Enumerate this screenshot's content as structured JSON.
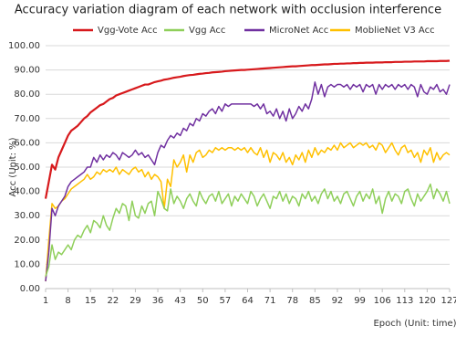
{
  "chart_data": {
    "type": "line",
    "title": "Accuracy variation diagram of each network with occlusion interference",
    "x_label": "Epoch  (Unit: time)",
    "y_label": "Acc  (Unit: %)",
    "x": [
      1,
      2,
      3,
      4,
      5,
      6,
      7,
      8,
      9,
      10,
      11,
      12,
      13,
      14,
      15,
      16,
      17,
      18,
      19,
      20,
      21,
      22,
      23,
      24,
      25,
      26,
      27,
      28,
      29,
      30,
      31,
      32,
      33,
      34,
      35,
      36,
      37,
      38,
      39,
      40,
      41,
      42,
      43,
      44,
      45,
      46,
      47,
      48,
      49,
      50,
      51,
      52,
      53,
      54,
      55,
      56,
      57,
      58,
      59,
      60,
      61,
      62,
      63,
      64,
      65,
      66,
      67,
      68,
      69,
      70,
      71,
      72,
      73,
      74,
      75,
      76,
      77,
      78,
      79,
      80,
      81,
      82,
      83,
      84,
      85,
      86,
      87,
      88,
      89,
      90,
      91,
      92,
      93,
      94,
      95,
      96,
      97,
      98,
      99,
      100,
      101,
      102,
      103,
      104,
      105,
      106,
      107,
      108,
      109,
      110,
      111,
      112,
      113,
      114,
      115,
      116,
      117,
      118,
      119,
      120,
      121,
      122,
      123,
      124,
      125,
      126,
      127
    ],
    "xlim": [
      1,
      127
    ],
    "xticks": [
      1,
      8,
      15,
      22,
      29,
      36,
      43,
      50,
      57,
      64,
      71,
      78,
      85,
      92,
      99,
      106,
      113,
      120,
      127
    ],
    "ylim": [
      0,
      100
    ],
    "yticks": [
      {
        "value": 0,
        "label": "0.00"
      },
      {
        "value": 10,
        "label": "10.00"
      },
      {
        "value": 20,
        "label": "20.00"
      },
      {
        "value": 30,
        "label": "30.00"
      },
      {
        "value": 40,
        "label": "40.00"
      },
      {
        "value": 50,
        "label": "50.00"
      },
      {
        "value": 60,
        "label": "60.00"
      },
      {
        "value": 70,
        "label": "70.00"
      },
      {
        "value": 80,
        "label": "80.00"
      },
      {
        "value": 90,
        "label": "90.00"
      },
      {
        "value": 100,
        "label": "100.00"
      }
    ],
    "grid": true,
    "legend": "top",
    "series": [
      {
        "name": "Vgg-Vote Acc",
        "color": "#d7191c",
        "values": [
          37,
          44,
          51,
          49,
          54,
          57,
          60,
          63,
          65,
          66,
          67,
          68.5,
          70,
          71,
          72.5,
          73.5,
          74.5,
          75.5,
          76,
          77,
          78,
          78.5,
          79.5,
          80,
          80.5,
          81,
          81.5,
          82,
          82.5,
          83,
          83.5,
          84,
          84,
          84.5,
          85,
          85.3,
          85.6,
          86,
          86.2,
          86.5,
          86.8,
          87,
          87.2,
          87.5,
          87.7,
          87.9,
          88,
          88.2,
          88.4,
          88.5,
          88.7,
          88.8,
          89,
          89.1,
          89.2,
          89.3,
          89.5,
          89.6,
          89.7,
          89.8,
          89.9,
          90,
          90,
          90.1,
          90.2,
          90.3,
          90.4,
          90.5,
          90.6,
          90.7,
          90.8,
          90.9,
          91,
          91.1,
          91.2,
          91.3,
          91.4,
          91.5,
          91.5,
          91.6,
          91.7,
          91.8,
          91.9,
          92,
          92,
          92.1,
          92.2,
          92.3,
          92.3,
          92.4,
          92.5,
          92.5,
          92.6,
          92.6,
          92.7,
          92.7,
          92.8,
          92.8,
          92.9,
          92.9,
          93,
          93,
          93,
          93.1,
          93.1,
          93.1,
          93.2,
          93.2,
          93.2,
          93.3,
          93.3,
          93.3,
          93.4,
          93.4,
          93.4,
          93.5,
          93.5,
          93.5,
          93.5,
          93.6,
          93.6,
          93.6,
          93.6,
          93.7,
          93.7,
          93.7,
          93.8
        ]
      },
      {
        "name": "Vgg Acc",
        "color": "#8fcf5a",
        "values": [
          5,
          9,
          18,
          12,
          15,
          14,
          16,
          18,
          16,
          20,
          22,
          21,
          24,
          26,
          23,
          28,
          27,
          25,
          30,
          26,
          24,
          29,
          33,
          31,
          35,
          34,
          28,
          36,
          30,
          29,
          34,
          31,
          35,
          36,
          30,
          40,
          37,
          33,
          32,
          41,
          35,
          38,
          36,
          33,
          37,
          39,
          36,
          34,
          40,
          37,
          35,
          38,
          39,
          36,
          40,
          35,
          37,
          39,
          34,
          38,
          36,
          39,
          37,
          35,
          40,
          38,
          34,
          37,
          39,
          36,
          33,
          38,
          37,
          40,
          36,
          39,
          35,
          38,
          37,
          34,
          39,
          37,
          40,
          36,
          38,
          35,
          39,
          41,
          37,
          40,
          36,
          38,
          35,
          39,
          40,
          37,
          34,
          38,
          40,
          36,
          39,
          37,
          41,
          35,
          38,
          31,
          37,
          40,
          36,
          39,
          38,
          35,
          40,
          41,
          37,
          34,
          39,
          36,
          38,
          40,
          43,
          37,
          41,
          39,
          36,
          40,
          35
        ]
      },
      {
        "name": "MicroNet Acc",
        "color": "#7030a0",
        "values": [
          3,
          15,
          33,
          30,
          34,
          36,
          38,
          42,
          44,
          45,
          46,
          47,
          48,
          50,
          50,
          54,
          52,
          55,
          53,
          55,
          54,
          56,
          55,
          53,
          56,
          55,
          54,
          55,
          57,
          55,
          56,
          54,
          55,
          53,
          51,
          56,
          59,
          58,
          61,
          63,
          62,
          64,
          63,
          66,
          65,
          68,
          67,
          70,
          69,
          72,
          71,
          73,
          74,
          72,
          75,
          73,
          76,
          75,
          76,
          76,
          76,
          76,
          76,
          76,
          76,
          75,
          76,
          74,
          76,
          72,
          73,
          71,
          74,
          70,
          73,
          69,
          74,
          70,
          72,
          75,
          73,
          76,
          74,
          78,
          85,
          80,
          84,
          79,
          83,
          84,
          83,
          84,
          84,
          83,
          84,
          82,
          84,
          83,
          84,
          81,
          84,
          83,
          84,
          80,
          84,
          82,
          84,
          83,
          84,
          82,
          84,
          83,
          84,
          82,
          84,
          83,
          79,
          84,
          81,
          80,
          83,
          82,
          84,
          81,
          82,
          80,
          84
        ]
      },
      {
        "name": "MoblieNet V3 Acc",
        "color": "#ffc000",
        "values": [
          3,
          20,
          35,
          33,
          34,
          36,
          37,
          39,
          41,
          42,
          43,
          44,
          45,
          47,
          45,
          46,
          48,
          47,
          49,
          48,
          49,
          48,
          50,
          47,
          49,
          48,
          47,
          49,
          50,
          48,
          49,
          46,
          48,
          45,
          47,
          46,
          44,
          33,
          45,
          42,
          53,
          50,
          52,
          55,
          48,
          55,
          52,
          56,
          57,
          54,
          55,
          57,
          56,
          58,
          57,
          58,
          57,
          58,
          58,
          57,
          58,
          57,
          58,
          56,
          58,
          56,
          55,
          58,
          54,
          57,
          52,
          56,
          55,
          53,
          56,
          52,
          54,
          51,
          55,
          53,
          56,
          52,
          57,
          54,
          58,
          55,
          57,
          56,
          58,
          57,
          59,
          57,
          60,
          58,
          59,
          60,
          58,
          59,
          60,
          59,
          60,
          58,
          59,
          57,
          60,
          59,
          56,
          58,
          60,
          57,
          55,
          58,
          59,
          56,
          57,
          54,
          56,
          52,
          57,
          55,
          58,
          52,
          56,
          53,
          55,
          56,
          55
        ]
      }
    ]
  }
}
